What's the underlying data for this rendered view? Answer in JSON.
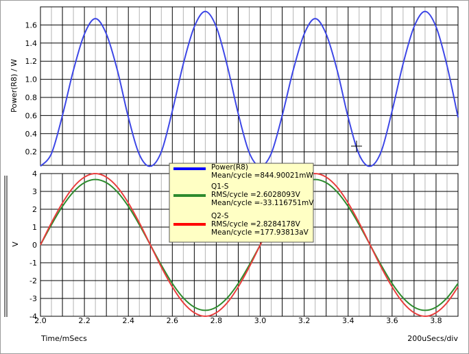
{
  "chart_data": [
    {
      "type": "line",
      "ylabel": "Power(R8) / W",
      "xlim": [
        2.0,
        3.9
      ],
      "ylim": [
        0.05,
        1.8
      ],
      "y_ticks": [
        "0.2",
        "0.4",
        "0.6",
        "0.8",
        "1.0",
        "1.2",
        "1.4",
        "1.6"
      ],
      "grid": true,
      "series": [
        {
          "name": "Power(R8)",
          "color": "#3c46e6",
          "x": [
            2.0,
            2.05,
            2.1,
            2.15,
            2.2,
            2.25,
            2.3,
            2.35,
            2.4,
            2.45,
            2.5,
            2.55,
            2.6,
            2.65,
            2.7,
            2.75,
            2.8,
            2.85,
            2.9,
            2.95,
            3.0,
            3.05,
            3.1,
            3.15,
            3.2,
            3.25,
            3.3,
            3.35,
            3.4,
            3.45,
            3.5,
            3.55,
            3.6,
            3.65,
            3.7,
            3.75,
            3.8,
            3.85,
            3.9
          ],
          "values": [
            0.04,
            0.18,
            0.6,
            1.1,
            1.5,
            1.67,
            1.5,
            1.1,
            0.58,
            0.17,
            0.04,
            0.2,
            0.65,
            1.17,
            1.58,
            1.75,
            1.58,
            1.15,
            0.62,
            0.19,
            0.04,
            0.18,
            0.6,
            1.1,
            1.5,
            1.67,
            1.5,
            1.1,
            0.58,
            0.17,
            0.04,
            0.2,
            0.65,
            1.17,
            1.58,
            1.75,
            1.58,
            1.15,
            0.58
          ]
        }
      ]
    },
    {
      "type": "line",
      "ylabel": "V",
      "xlabel": "Time/mSecs",
      "xlabel_right": "200uSecs/div",
      "xlim": [
        2.0,
        3.9
      ],
      "ylim": [
        -4,
        4
      ],
      "x_ticks": [
        "2.0",
        "2.2",
        "2.4",
        "2.6",
        "2.8",
        "3.0",
        "3.2",
        "3.4",
        "3.6",
        "3.8"
      ],
      "y_ticks": [
        "-4",
        "-3",
        "-2",
        "-1",
        "0",
        "1",
        "2",
        "3",
        "4"
      ],
      "grid": true,
      "series": [
        {
          "name": "Q1-S",
          "color": "#2e8b2e",
          "x": [
            2.0,
            2.05,
            2.1,
            2.15,
            2.2,
            2.25,
            2.3,
            2.35,
            2.4,
            2.45,
            2.5,
            2.55,
            2.6,
            2.65,
            2.7,
            2.75,
            2.8,
            2.85,
            2.9,
            2.95,
            3.0,
            3.05,
            3.1,
            3.15,
            3.2,
            3.25,
            3.3,
            3.35,
            3.4,
            3.45,
            3.5,
            3.55,
            3.6,
            3.65,
            3.7,
            3.75,
            3.8,
            3.85,
            3.9
          ],
          "values": [
            0.0,
            1.13,
            2.16,
            2.97,
            3.49,
            3.67,
            3.49,
            2.97,
            2.16,
            1.13,
            0.0,
            -1.13,
            -2.16,
            -2.97,
            -3.49,
            -3.67,
            -3.49,
            -2.97,
            -2.16,
            -1.13,
            0.0,
            1.13,
            2.16,
            2.97,
            3.49,
            3.67,
            3.49,
            2.97,
            2.16,
            1.13,
            0.0,
            -1.13,
            -2.16,
            -2.97,
            -3.49,
            -3.67,
            -3.49,
            -2.97,
            -2.16
          ]
        },
        {
          "name": "Q2-S",
          "color": "#e83c3c",
          "x": [
            2.0,
            2.05,
            2.1,
            2.15,
            2.2,
            2.25,
            2.3,
            2.35,
            2.4,
            2.45,
            2.5,
            2.55,
            2.6,
            2.65,
            2.7,
            2.75,
            2.8,
            2.85,
            2.9,
            2.95,
            3.0,
            3.05,
            3.1,
            3.15,
            3.2,
            3.25,
            3.3,
            3.35,
            3.4,
            3.45,
            3.5,
            3.55,
            3.6,
            3.65,
            3.7,
            3.75,
            3.8,
            3.85,
            3.9
          ],
          "values": [
            0.0,
            1.24,
            2.35,
            3.24,
            3.8,
            4.0,
            3.8,
            3.24,
            2.35,
            1.24,
            0.0,
            -1.24,
            -2.35,
            -3.24,
            -3.8,
            -4.0,
            -3.8,
            -3.24,
            -2.35,
            -1.24,
            0.0,
            1.24,
            2.35,
            3.24,
            3.8,
            4.0,
            3.8,
            3.24,
            2.35,
            1.24,
            0.0,
            -1.24,
            -2.35,
            -3.24,
            -3.8,
            -4.0,
            -3.8,
            -3.24,
            -2.35
          ]
        }
      ]
    }
  ],
  "legend": {
    "placement": "center",
    "entries": [
      {
        "name": "Power(R8)",
        "color": "#0000ff",
        "lines": [
          "Mean/cycle =844.90021mW"
        ]
      },
      {
        "name": "Q1-S",
        "color": "#2e8b2e",
        "lines": [
          "RMS/cycle =2.6028093V",
          "Mean/cycle =-33.116751mV"
        ]
      },
      {
        "name": "Q2-S",
        "color": "#ff0000",
        "lines": [
          "RMS/cycle =2.8284178V",
          "Mean/cycle =177.93813aV"
        ]
      }
    ]
  }
}
